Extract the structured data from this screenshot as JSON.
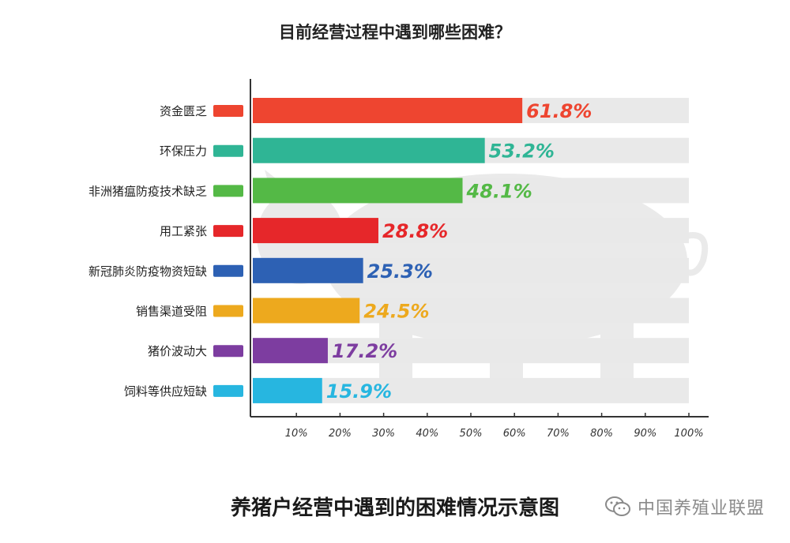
{
  "chart_data": {
    "type": "bar",
    "orientation": "horizontal",
    "title": "目前经营过程中遇到哪些困难？",
    "subtitle": "养猪户经营中遇到的困难情况示意图",
    "xlim": [
      0,
      100
    ],
    "x_ticks": [
      "10%",
      "20%",
      "30%",
      "40%",
      "50%",
      "60%",
      "70%",
      "80%",
      "90%",
      "100%"
    ],
    "categories": [
      "资金匮乏",
      "环保压力",
      "非洲猪瘟防疫技术缺乏",
      "用工紧张",
      "新冠肺炎防疫物资短缺",
      "销售渠道受阻",
      "猪价波动大",
      "饲料等供应短缺"
    ],
    "values": [
      61.8,
      53.2,
      48.1,
      28.8,
      25.3,
      24.5,
      17.2,
      15.9
    ],
    "value_labels": [
      "61.8%",
      "53.2%",
      "48.1%",
      "28.8%",
      "25.3%",
      "24.5%",
      "17.2%",
      "15.9%"
    ],
    "colors": [
      "#ee4530",
      "#2fb595",
      "#54b946",
      "#e6272a",
      "#2d61b4",
      "#eda91e",
      "#7d3da0",
      "#27b6e0"
    ],
    "track_color": "#e9e9e9",
    "grid": false
  },
  "watermark": {
    "text": "中国养殖业联盟",
    "icon": "wechat-icon"
  }
}
